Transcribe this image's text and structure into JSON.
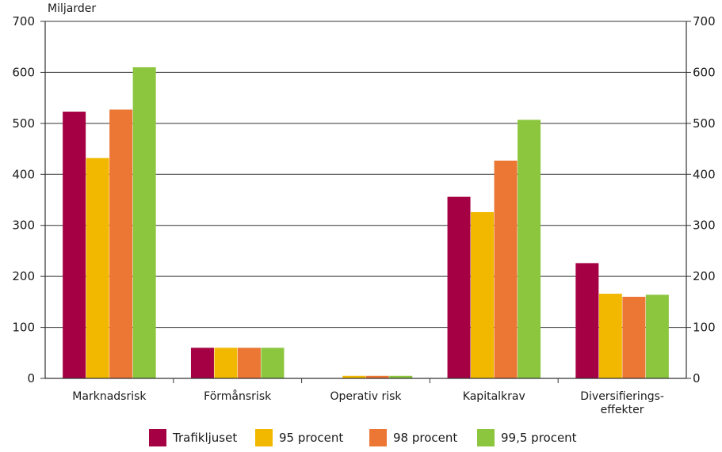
{
  "chart_data": {
    "type": "bar",
    "unit_label": "Miljarder",
    "categories": [
      [
        "Marknadsrisk"
      ],
      [
        "Förmånsrisk"
      ],
      [
        "Operativ risk"
      ],
      [
        "Kapitalkrav"
      ],
      [
        "Diversifierings-",
        "effekter"
      ]
    ],
    "series": [
      {
        "name": "Trafikljuset",
        "color": "#a50044",
        "values": [
          523,
          60,
          0,
          356,
          226
        ]
      },
      {
        "name": "95 procent",
        "color": "#f2b800",
        "values": [
          432,
          60,
          5,
          326,
          166
        ]
      },
      {
        "name": "98 procent",
        "color": "#ec7634",
        "values": [
          527,
          60,
          5,
          427,
          160
        ]
      },
      {
        "name": "99,5 procent",
        "color": "#8cc63f",
        "values": [
          610,
          60,
          5,
          507,
          164
        ]
      }
    ],
    "ylim": [
      0,
      700
    ],
    "yticks": [
      0,
      100,
      200,
      300,
      400,
      500,
      600,
      700
    ],
    "grid": true,
    "secondary_axis": true,
    "legend_position": "bottom"
  }
}
